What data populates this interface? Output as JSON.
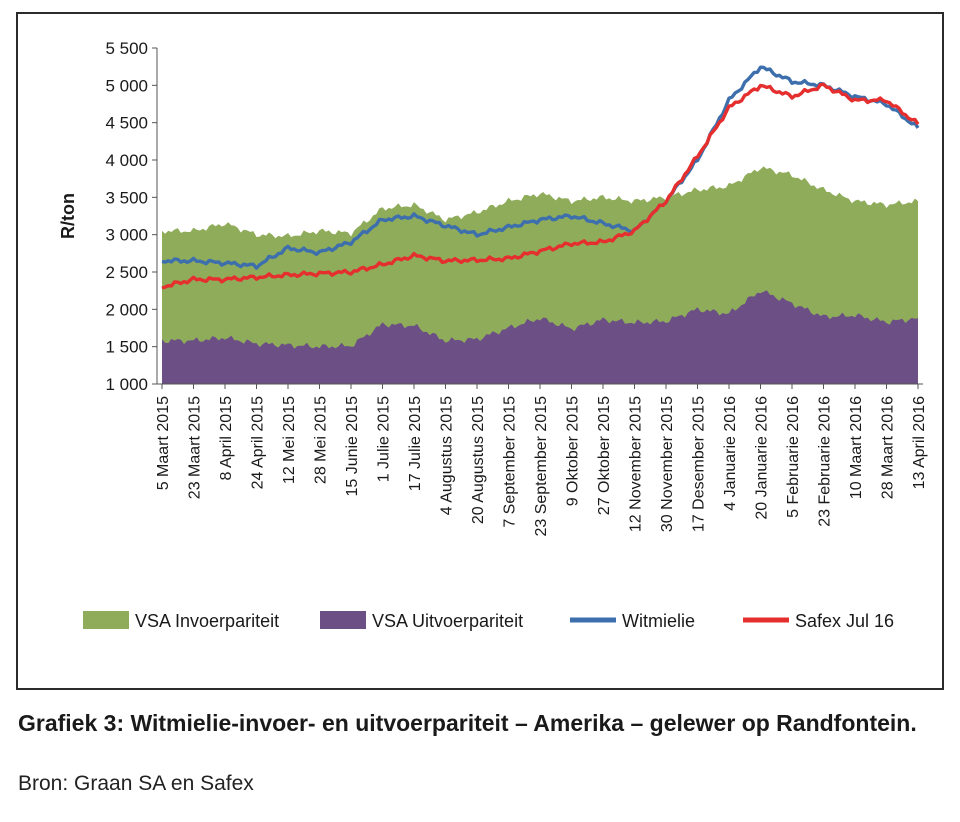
{
  "caption": {
    "title": "Grafiek 3: Witmielie-invoer- en uitvoerpariteit – Amerika – gelewer op Randfontein.",
    "source": "Bron: Graan SA en Safex"
  },
  "chart_data": {
    "type": "area",
    "ylabel": "R/ton",
    "ylim": [
      1000,
      5500
    ],
    "y_ticks": [
      "1 000",
      "1 500",
      "2 000",
      "2 500",
      "3 000",
      "3 500",
      "4 000",
      "4 500",
      "5 000",
      "5 500"
    ],
    "categories": [
      "5 Maart 2015",
      "23 Maart 2015",
      "8 April 2015",
      "24 April 2015",
      "12 Mei 2015",
      "28 Mei 2015",
      "15 Junie 2015",
      "1 Julie 2015",
      "17 Julie 2015",
      "4 Augustus 2015",
      "20 Augustus 2015",
      "7 September 2015",
      "23 September 2015",
      "9 Oktober 2015",
      "27 Oktober 2015",
      "12 November 2015",
      "30 November 2015",
      "17 Desember 2015",
      "4 Januarie 2016",
      "20 Januarie 2016",
      "5 Februarie 2016",
      "23 Februarie 2016",
      "10 Maart 2016",
      "28 Maart 2016",
      "13 April 2016"
    ],
    "grid": false,
    "legend": "bottom",
    "series": [
      {
        "name": "VSA Invoerpariteit",
        "kind": "area",
        "color": "#8fac5a",
        "values": [
          3050,
          3050,
          3150,
          3000,
          2980,
          3050,
          3020,
          3350,
          3400,
          3200,
          3300,
          3450,
          3550,
          3450,
          3500,
          3450,
          3500,
          3600,
          3650,
          3900,
          3800,
          3600,
          3450,
          3400,
          3450
        ]
      },
      {
        "name": "VSA Uitvoerpariteit",
        "kind": "area",
        "color": "#6b4f85",
        "values": [
          1580,
          1580,
          1620,
          1540,
          1520,
          1500,
          1510,
          1800,
          1780,
          1580,
          1600,
          1750,
          1880,
          1740,
          1860,
          1820,
          1840,
          2000,
          1940,
          2250,
          2080,
          1900,
          1920,
          1830,
          1880
        ]
      },
      {
        "name": "Witmielie",
        "kind": "line",
        "color": "#3e6fad",
        "values": [
          2650,
          2650,
          2620,
          2580,
          2820,
          2760,
          2900,
          3200,
          3250,
          3120,
          3000,
          3100,
          3200,
          3250,
          3150,
          3050,
          3450,
          4000,
          4800,
          5250,
          5050,
          5000,
          4850,
          4750,
          4430
        ]
      },
      {
        "name": "Safex Jul 16",
        "kind": "line",
        "color": "#e52f2f",
        "values": [
          2300,
          2400,
          2400,
          2430,
          2460,
          2480,
          2500,
          2600,
          2720,
          2650,
          2660,
          2680,
          2780,
          2880,
          2900,
          3050,
          3450,
          4050,
          4700,
          5000,
          4850,
          5000,
          4800,
          4800,
          4480
        ]
      }
    ]
  }
}
